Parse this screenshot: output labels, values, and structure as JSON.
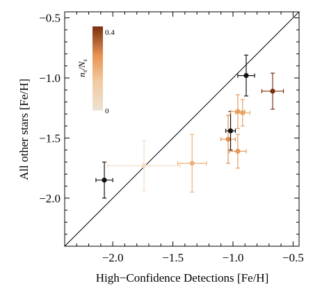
{
  "chart_data": {
    "type": "scatter",
    "xlabel": "High−Confidence Detections [Fe/H]",
    "ylabel": "All other stars [Fe/H]",
    "xlim": [
      -2.4,
      -0.45
    ],
    "ylim": [
      -2.4,
      -0.45
    ],
    "xticks": [
      "−2.0",
      "−1.5",
      "−1.0",
      "−0.5"
    ],
    "xtick_values": [
      -2.0,
      -1.5,
      -1.0,
      -0.5
    ],
    "yticks": [
      "−2.0",
      "−1.5",
      "−1.0",
      "−0.5"
    ],
    "ytick_values": [
      -2.0,
      -1.5,
      -1.0,
      -0.5
    ],
    "reference_line": "y = x",
    "colorbar": {
      "label": "n_s/N_s",
      "label_parts": [
        "n",
        "s",
        "/N",
        "s"
      ],
      "min_label": "0",
      "max_label": "0.4",
      "min": 0,
      "max": 0.4,
      "color_low": "#ece3d4",
      "color_high": "#7a2e10"
    },
    "points": [
      {
        "x": -2.07,
        "y": -1.85,
        "xerr": 0.07,
        "yerr": 0.15,
        "color": "#111111"
      },
      {
        "x": -1.74,
        "y": -1.73,
        "xerr": 0.3,
        "yerr": 0.21,
        "color": "#f3dcc0"
      },
      {
        "x": -1.34,
        "y": -1.71,
        "xerr": 0.12,
        "yerr": 0.24,
        "color": "#e9b17c"
      },
      {
        "x": -1.04,
        "y": -1.51,
        "xerr": 0.06,
        "yerr": 0.2,
        "color": "#e0904f"
      },
      {
        "x": -1.02,
        "y": -1.44,
        "xerr": 0.04,
        "yerr": 0.16,
        "color": "#111111"
      },
      {
        "x": -0.96,
        "y": -1.28,
        "xerr": 0.06,
        "yerr": 0.14,
        "color": "#e89c5e"
      },
      {
        "x": -0.96,
        "y": -1.61,
        "xerr": 0.07,
        "yerr": 0.14,
        "color": "#e69a5c"
      },
      {
        "x": -0.92,
        "y": -1.29,
        "xerr": 0.06,
        "yerr": 0.11,
        "color": "#e9a367"
      },
      {
        "x": -0.89,
        "y": -0.98,
        "xerr": 0.07,
        "yerr": 0.17,
        "color": "#111111"
      },
      {
        "x": -0.67,
        "y": -1.11,
        "xerr": 0.09,
        "yerr": 0.15,
        "color": "#7a2e10"
      }
    ]
  }
}
